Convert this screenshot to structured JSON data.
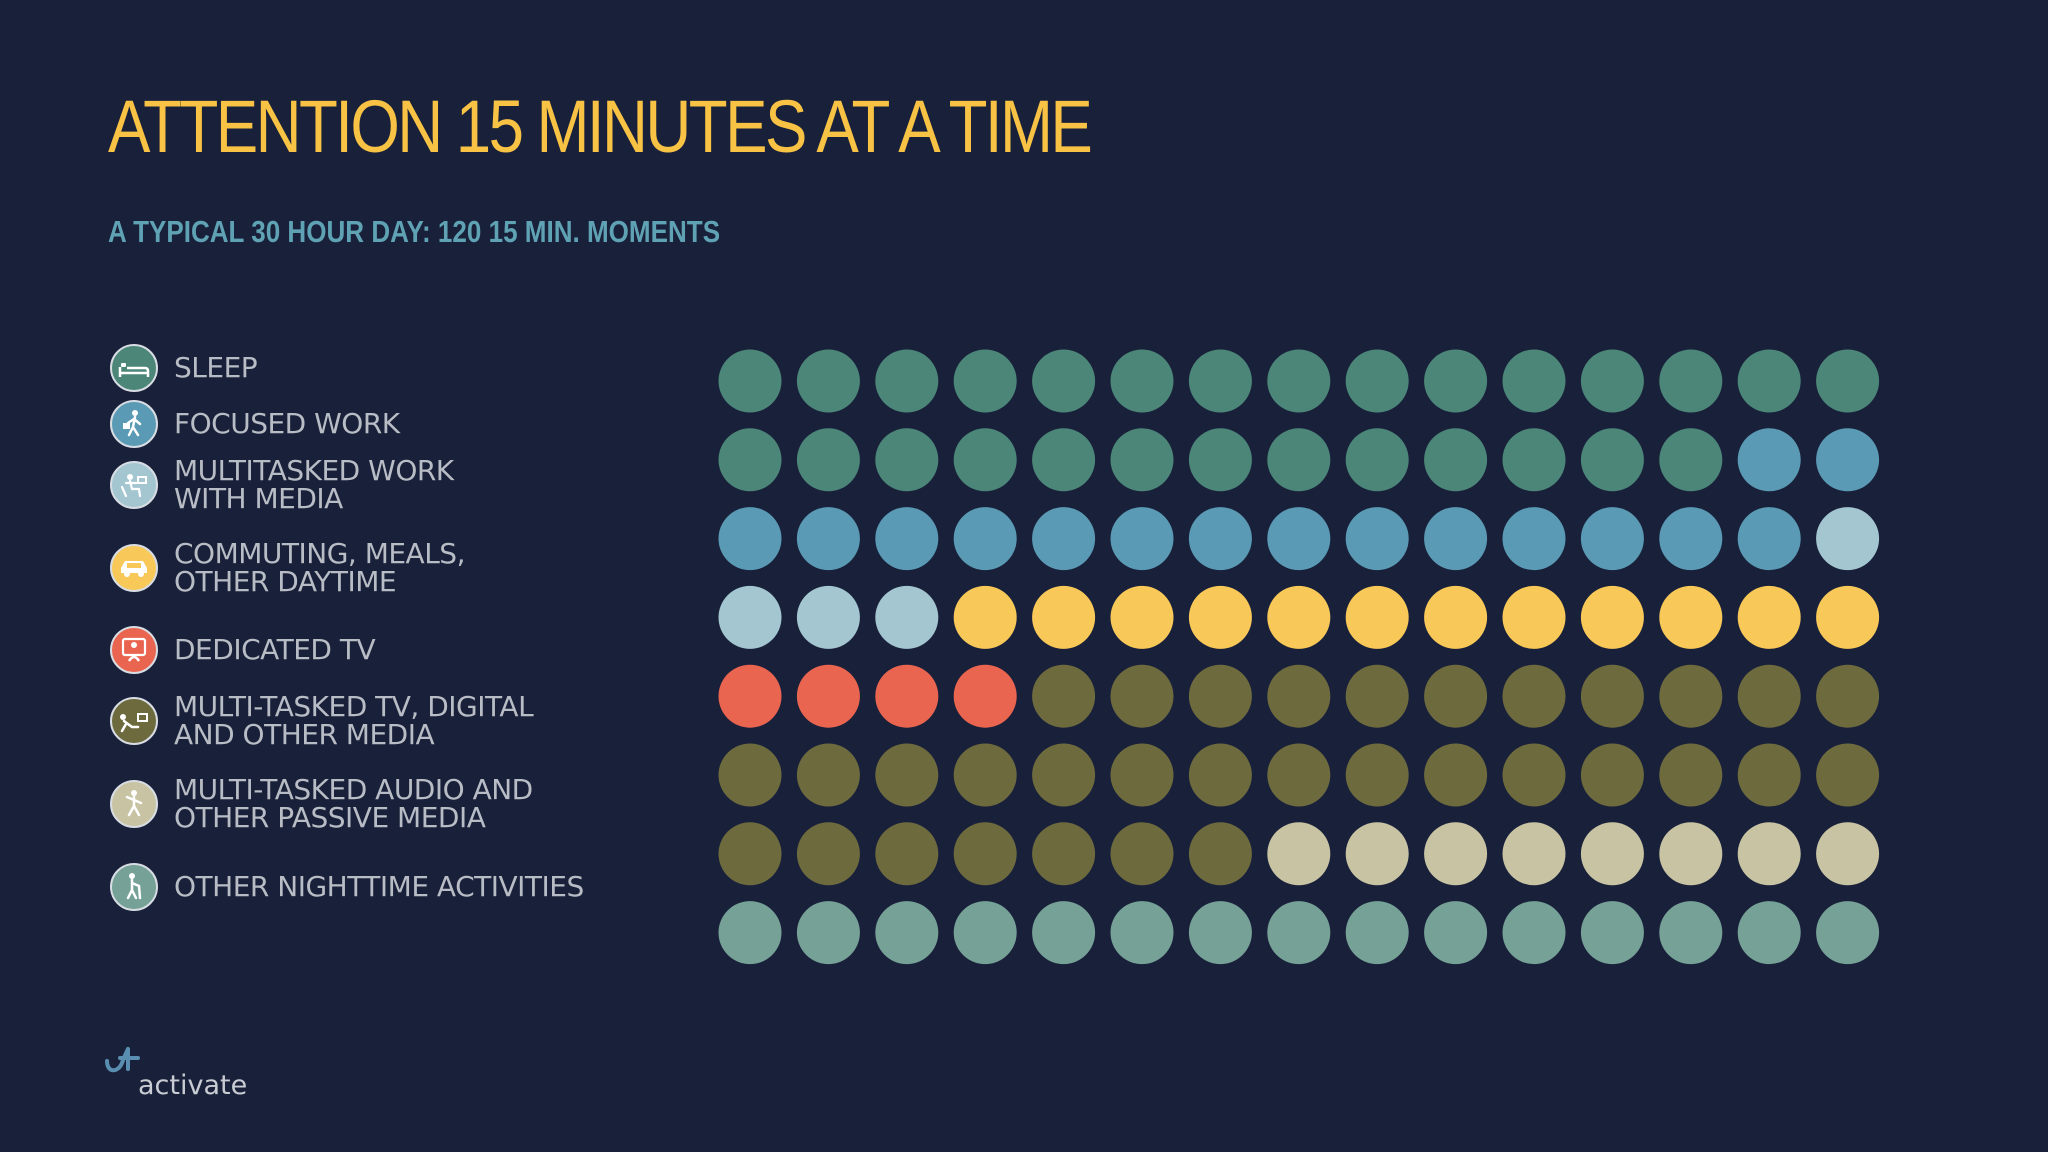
{
  "title": "ATTENTION 15 MINUTES AT A TIME",
  "subtitle": "A TYPICAL 30 HOUR DAY: 120 15 MIN. MOMENTS",
  "legend": [
    {
      "lines": [
        "SLEEP"
      ],
      "color": "#4b8678",
      "icon": "bed-icon"
    },
    {
      "lines": [
        "FOCUSED WORK"
      ],
      "color": "#5a9ab4",
      "icon": "person-walking-briefcase-icon"
    },
    {
      "lines": [
        "MULTITASKED WORK",
        "WITH MEDIA"
      ],
      "color": "#a3c6d1",
      "icon": "person-at-desk-icon"
    },
    {
      "lines": [
        "COMMUTING, MEALS,",
        "OTHER DAYTIME"
      ],
      "color": "#f8c858",
      "icon": "car-icon"
    },
    {
      "lines": [
        "DEDICATED TV"
      ],
      "color": "#ea6550",
      "icon": "person-watching-tv-icon"
    },
    {
      "lines": [
        "MULTI-TASKED TV, DIGITAL",
        "AND OTHER MEDIA"
      ],
      "color": "#6d6a3e",
      "icon": "person-reclining-tv-icon"
    },
    {
      "lines": [
        "MULTI-TASKED AUDIO AND",
        "OTHER PASSIVE MEDIA"
      ],
      "color": "#c7c3a3",
      "icon": "person-dancing-icon"
    },
    {
      "lines": [
        "OTHER NIGHTTIME ACTIVITIES"
      ],
      "color": "#76a197",
      "icon": "person-with-cane-icon"
    }
  ],
  "chart_data": {
    "type": "waffle",
    "title": "ATTENTION 15 MINUTES AT A TIME",
    "subtitle": "A TYPICAL 30 HOUR DAY: 120 15 MIN. MOMENTS",
    "rows": 8,
    "columns": 15,
    "unit": "15 min. moment",
    "categories": [
      "SLEEP",
      "FOCUSED WORK",
      "MULTITASKED WORK WITH MEDIA",
      "COMMUTING, MEALS, OTHER DAYTIME",
      "DEDICATED TV",
      "MULTI-TASKED TV, DIGITAL AND OTHER MEDIA",
      "MULTI-TASKED AUDIO AND OTHER PASSIVE MEDIA",
      "OTHER NIGHTTIME ACTIVITIES"
    ],
    "values": [
      28,
      16,
      4,
      12,
      4,
      33,
      8,
      15
    ],
    "colors": [
      "#4b8678",
      "#5a9ab4",
      "#a3c6d1",
      "#f8c858",
      "#ea6550",
      "#6d6a3e",
      "#c7c3a3",
      "#76a197"
    ]
  },
  "logo": {
    "text": "activate"
  },
  "colors": {
    "background": "#19203a",
    "title": "#f8c344",
    "subtitle": "#5fa2b4",
    "legend_text": "#b8bcc4"
  }
}
